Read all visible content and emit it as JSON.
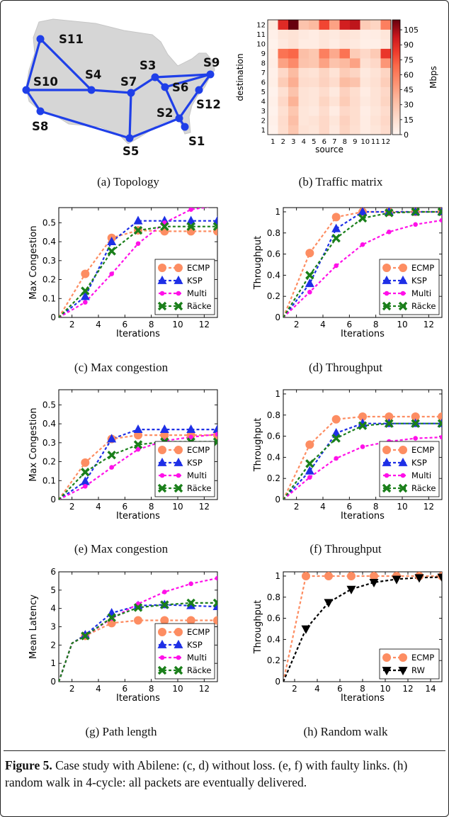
{
  "caption": {
    "label": "Figure 5.",
    "text": " Case study with Abilene: (c, d) without loss. (e, f) with faulty links. (h) random walk in 4-cycle: all packets are eventually delivered."
  },
  "topology": {
    "caption": "(a) Topology",
    "edge_color": "#1f3fe8",
    "land_color": "#d6d6d6",
    "nodes": [
      "S1",
      "S2",
      "S3",
      "S4",
      "S5",
      "S6",
      "S7",
      "S8",
      "S9",
      "S10",
      "S11",
      "S12"
    ],
    "edges": [
      [
        "S11",
        "S10"
      ],
      [
        "S11",
        "S4"
      ],
      [
        "S10",
        "S8"
      ],
      [
        "S10",
        "S4"
      ],
      [
        "S4",
        "S7"
      ],
      [
        "S7",
        "S3"
      ],
      [
        "S7",
        "S5"
      ],
      [
        "S8",
        "S5"
      ],
      [
        "S5",
        "S2"
      ],
      [
        "S2",
        "S6"
      ],
      [
        "S2",
        "S12"
      ],
      [
        "S2",
        "S1"
      ],
      [
        "S3",
        "S9"
      ],
      [
        "S6",
        "S9"
      ],
      [
        "S6",
        "S3"
      ],
      [
        "S12",
        "S9"
      ]
    ]
  },
  "traffic": {
    "caption": "(b) Traffic matrix",
    "xlabel": "source",
    "ylabel": "destination",
    "colorbar_label": "Mbps",
    "colorbar_ticks": [
      0,
      15,
      30,
      45,
      60,
      75,
      90,
      105
    ],
    "vmax": 115,
    "x_ticks": [
      "1",
      "2",
      "3",
      "4",
      "5",
      "6",
      "7",
      "8",
      "9",
      "10",
      "11",
      "12"
    ],
    "y_ticks": [
      "1",
      "2",
      "3",
      "4",
      "5",
      "6",
      "7",
      "8",
      "9",
      "10",
      "11",
      "12"
    ]
  },
  "c": {
    "caption": "(c) Max congestion"
  },
  "d": {
    "caption": "(d) Throughput"
  },
  "e": {
    "caption": "(e) Max congestion"
  },
  "f": {
    "caption": "(f) Throughput"
  },
  "g": {
    "caption": "(g) Path length"
  },
  "h": {
    "caption": "(h) Random walk"
  },
  "chart_data": [
    {
      "id": "a",
      "type": "other",
      "title": "(a) Topology",
      "nodes": [
        "S1",
        "S2",
        "S3",
        "S4",
        "S5",
        "S6",
        "S7",
        "S8",
        "S9",
        "S10",
        "S11",
        "S12"
      ]
    },
    {
      "id": "b",
      "type": "heatmap",
      "title": "(b) Traffic matrix",
      "xlabel": "source",
      "ylabel": "destination",
      "colorbar_label": "Mbps",
      "x": [
        1,
        2,
        3,
        4,
        5,
        6,
        7,
        8,
        9,
        10,
        11,
        12
      ],
      "y": [
        1,
        2,
        3,
        4,
        5,
        6,
        7,
        8,
        9,
        10,
        11,
        12
      ],
      "clim": [
        0,
        115
      ],
      "values": [
        [
          2,
          15,
          28,
          12,
          10,
          18,
          8,
          20,
          14,
          6,
          10,
          16
        ],
        [
          3,
          16,
          32,
          10,
          12,
          18,
          10,
          22,
          15,
          6,
          12,
          18
        ],
        [
          2,
          14,
          28,
          10,
          8,
          16,
          6,
          18,
          15,
          5,
          10,
          16
        ],
        [
          3,
          18,
          38,
          12,
          10,
          20,
          12,
          25,
          16,
          8,
          12,
          20
        ],
        [
          2,
          14,
          30,
          12,
          10,
          16,
          8,
          22,
          15,
          6,
          12,
          18
        ],
        [
          4,
          25,
          40,
          16,
          15,
          22,
          16,
          34,
          30,
          10,
          14,
          24
        ],
        [
          3,
          18,
          34,
          14,
          12,
          20,
          12,
          25,
          20,
          8,
          12,
          20
        ],
        [
          5,
          45,
          55,
          30,
          28,
          45,
          30,
          35,
          45,
          14,
          18,
          50
        ],
        [
          4,
          65,
          70,
          32,
          28,
          60,
          42,
          65,
          25,
          18,
          26,
          85
        ],
        [
          2,
          8,
          12,
          6,
          6,
          10,
          6,
          10,
          8,
          4,
          4,
          8
        ],
        [
          3,
          10,
          12,
          8,
          6,
          10,
          8,
          12,
          10,
          5,
          6,
          10
        ],
        [
          8,
          90,
          115,
          30,
          35,
          80,
          45,
          95,
          100,
          25,
          20,
          60
        ]
      ]
    },
    {
      "id": "c",
      "type": "line",
      "title": "(c) Max congestion",
      "xlabel": "Iterations",
      "ylabel": "Max Congestion",
      "xlim": [
        1,
        13
      ],
      "ylim": [
        0,
        0.58
      ],
      "xticks": [
        2,
        4,
        6,
        8,
        10,
        12
      ],
      "yticks": [
        0.0,
        0.1,
        0.2,
        0.3,
        0.4,
        0.5
      ],
      "x": [
        1,
        3,
        5,
        7,
        9,
        11,
        13
      ],
      "legend_loc": "lower right",
      "series": [
        {
          "name": "ECMP",
          "values": [
            0.0,
            0.23,
            0.42,
            0.46,
            0.455,
            0.455,
            0.455
          ]
        },
        {
          "name": "KSP",
          "values": [
            0.0,
            0.11,
            0.4,
            0.51,
            0.51,
            0.51,
            0.51
          ]
        },
        {
          "name": "Multi",
          "values": [
            0.0,
            0.08,
            0.23,
            0.39,
            0.5,
            0.57,
            0.59
          ]
        },
        {
          "name": "Räcke",
          "values": [
            0.0,
            0.14,
            0.35,
            0.46,
            0.48,
            0.48,
            0.48
          ]
        }
      ]
    },
    {
      "id": "d",
      "type": "line",
      "title": "(d) Throughput",
      "xlabel": "Iterations",
      "ylabel": "Throughput",
      "xlim": [
        1,
        13
      ],
      "ylim": [
        0,
        1.04
      ],
      "xticks": [
        2,
        4,
        6,
        8,
        10,
        12
      ],
      "yticks": [
        0.0,
        0.2,
        0.4,
        0.6,
        0.8,
        1.0
      ],
      "x": [
        1,
        3,
        5,
        7,
        9,
        11,
        13
      ],
      "legend_loc": "lower right",
      "series": [
        {
          "name": "ECMP",
          "values": [
            0.0,
            0.61,
            0.95,
            1.0,
            1.0,
            1.0,
            1.0
          ]
        },
        {
          "name": "KSP",
          "values": [
            0.0,
            0.32,
            0.84,
            1.0,
            1.0,
            1.0,
            1.0
          ]
        },
        {
          "name": "Multi",
          "values": [
            0.0,
            0.24,
            0.49,
            0.69,
            0.81,
            0.88,
            0.92
          ]
        },
        {
          "name": "Räcke",
          "values": [
            0.0,
            0.4,
            0.75,
            0.94,
            0.99,
            1.0,
            1.0
          ]
        }
      ]
    },
    {
      "id": "e",
      "type": "line",
      "title": "(e) Max congestion",
      "xlabel": "Iterations",
      "ylabel": "Max Congestion",
      "xlim": [
        1,
        13
      ],
      "ylim": [
        0,
        0.58
      ],
      "xticks": [
        2,
        4,
        6,
        8,
        10,
        12
      ],
      "yticks": [
        0.0,
        0.1,
        0.2,
        0.3,
        0.4,
        0.5
      ],
      "x": [
        1,
        3,
        5,
        7,
        9,
        11,
        13
      ],
      "legend_loc": "lower right",
      "series": [
        {
          "name": "ECMP",
          "values": [
            0.0,
            0.195,
            0.32,
            0.34,
            0.34,
            0.34,
            0.34
          ]
        },
        {
          "name": "KSP",
          "values": [
            0.0,
            0.095,
            0.32,
            0.37,
            0.37,
            0.37,
            0.37
          ]
        },
        {
          "name": "Multi",
          "values": [
            0.0,
            0.07,
            0.17,
            0.265,
            0.31,
            0.33,
            0.345
          ]
        },
        {
          "name": "Räcke",
          "values": [
            0.0,
            0.145,
            0.235,
            0.29,
            0.305,
            0.305,
            0.305
          ]
        }
      ]
    },
    {
      "id": "f",
      "type": "line",
      "title": "(f) Throughput",
      "xlabel": "Iterations",
      "ylabel": "Throughput",
      "xlim": [
        1,
        13
      ],
      "ylim": [
        0,
        1.04
      ],
      "xticks": [
        2,
        4,
        6,
        8,
        10,
        12
      ],
      "yticks": [
        0.0,
        0.2,
        0.4,
        0.6,
        0.8,
        1.0
      ],
      "x": [
        1,
        3,
        5,
        7,
        9,
        11,
        13
      ],
      "legend_loc": "lower right",
      "series": [
        {
          "name": "ECMP",
          "values": [
            0.0,
            0.52,
            0.76,
            0.785,
            0.785,
            0.785,
            0.785
          ]
        },
        {
          "name": "KSP",
          "values": [
            0.0,
            0.27,
            0.63,
            0.72,
            0.72,
            0.72,
            0.72
          ]
        },
        {
          "name": "Multi",
          "values": [
            0.0,
            0.21,
            0.39,
            0.5,
            0.55,
            0.58,
            0.59
          ]
        },
        {
          "name": "Räcke",
          "values": [
            0.0,
            0.34,
            0.58,
            0.7,
            0.72,
            0.72,
            0.72
          ]
        }
      ]
    },
    {
      "id": "g",
      "type": "line",
      "title": "(g) Path length",
      "xlabel": "Iterations",
      "ylabel": "Mean Latency",
      "xlim": [
        1,
        13
      ],
      "ylim": [
        0,
        6
      ],
      "xticks": [
        2,
        4,
        6,
        8,
        10,
        12
      ],
      "yticks": [
        0,
        1,
        2,
        3,
        4,
        5,
        6
      ],
      "x": [
        1,
        2,
        3,
        5,
        7,
        9,
        11,
        13
      ],
      "legend_loc": "lower right",
      "series": [
        {
          "name": "ECMP",
          "values": [
            0.0,
            2.1,
            2.5,
            3.2,
            3.35,
            3.35,
            3.35,
            3.35
          ]
        },
        {
          "name": "KSP",
          "values": [
            0.0,
            2.1,
            2.55,
            3.75,
            4.15,
            4.2,
            4.15,
            4.1
          ]
        },
        {
          "name": "Multi",
          "values": [
            0.0,
            2.1,
            2.5,
            3.45,
            4.25,
            4.9,
            5.35,
            5.65
          ]
        },
        {
          "name": "Räcke",
          "values": [
            0.0,
            2.1,
            2.5,
            3.5,
            4.05,
            4.2,
            4.3,
            4.3
          ]
        }
      ]
    },
    {
      "id": "h",
      "type": "line",
      "title": "(h) Random walk",
      "xlabel": "Iterations",
      "ylabel": "Throughput",
      "xlim": [
        1,
        15
      ],
      "ylim": [
        0,
        1.04
      ],
      "xticks": [
        2,
        4,
        6,
        8,
        10,
        12,
        14
      ],
      "yticks": [
        0.0,
        0.2,
        0.4,
        0.6,
        0.8,
        1.0
      ],
      "x": [
        1,
        3,
        5,
        7,
        9,
        11,
        13,
        15
      ],
      "legend_loc": "lower right",
      "series": [
        {
          "name": "ECMP",
          "values": [
            0.0,
            1.0,
            1.0,
            1.0,
            1.0,
            1.0,
            1.0,
            1.0
          ]
        },
        {
          "name": "RW",
          "values": [
            0.0,
            0.5,
            0.75,
            0.875,
            0.94,
            0.97,
            0.985,
            0.99
          ]
        }
      ]
    }
  ]
}
